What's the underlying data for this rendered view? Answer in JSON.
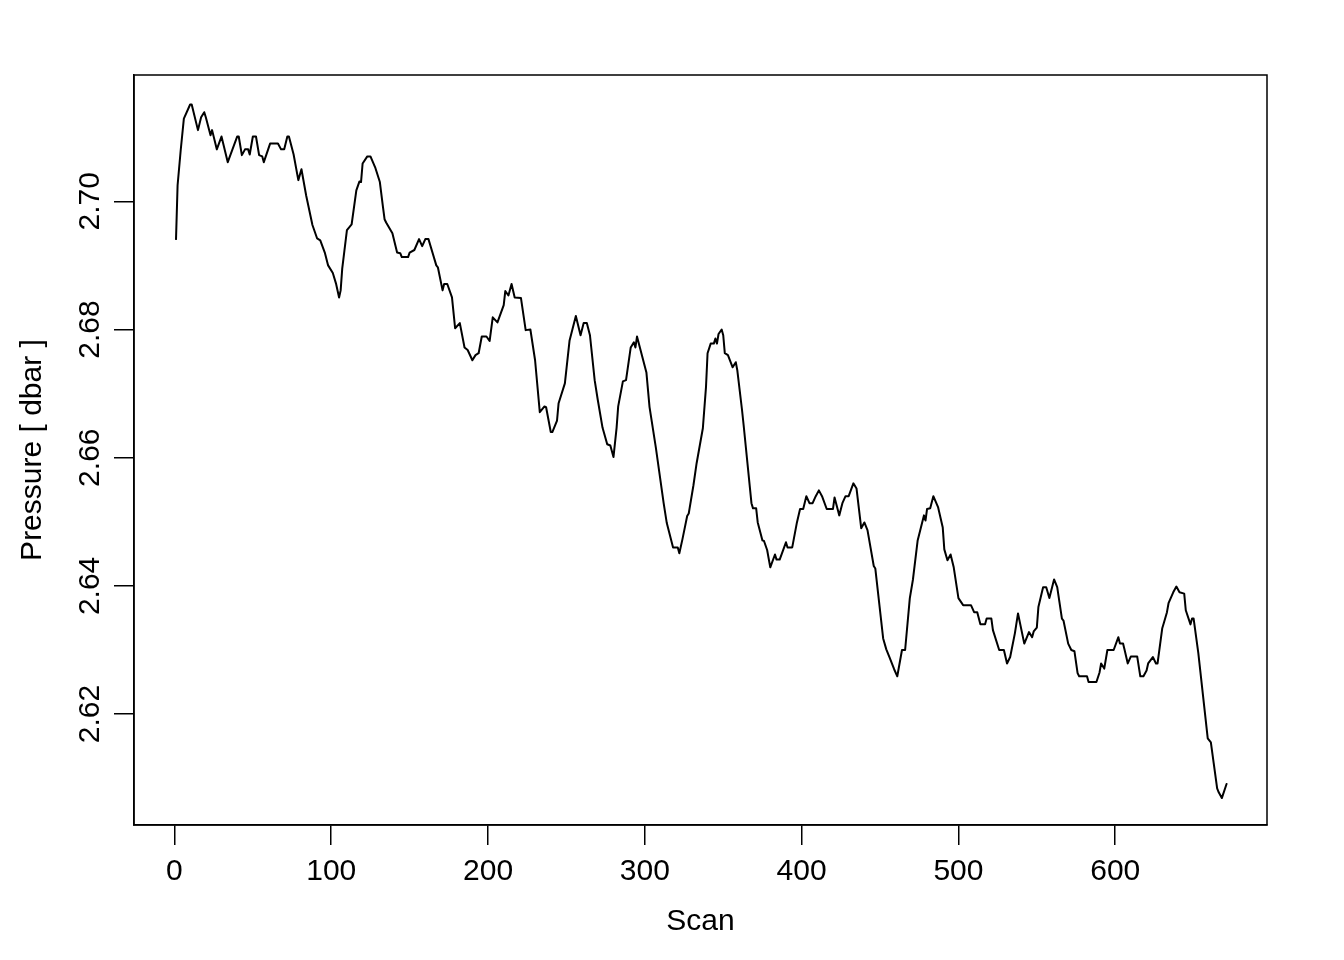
{
  "chart_data": {
    "type": "line",
    "xlabel": "Scan",
    "ylabel": "Pressure [ dbar ]",
    "x": [
      1,
      2,
      4,
      6,
      10,
      11,
      15,
      17,
      19,
      20,
      23,
      24,
      27,
      30,
      34,
      37,
      40,
      41,
      43,
      45,
      47,
      48,
      50,
      52,
      54,
      56,
      57,
      61,
      66,
      68,
      70,
      72,
      73,
      76,
      79,
      81,
      84,
      88,
      91,
      93,
      96,
      98,
      101,
      103,
      105,
      106,
      107,
      110,
      113,
      116,
      118,
      119,
      120,
      123,
      125,
      128,
      131,
      133,
      134,
      135,
      139,
      142,
      144,
      145,
      149,
      150,
      153,
      156,
      158,
      160,
      162,
      167,
      168,
      171,
      172,
      174,
      177,
      179,
      182,
      185,
      187,
      190,
      192,
      194,
      196,
      199,
      201,
      203,
      206,
      210,
      211,
      213,
      215,
      217,
      221,
      224,
      227,
      230,
      233,
      236,
      237,
      240,
      241,
      244,
      245,
      249,
      252,
      256,
      259,
      261,
      263,
      265,
      268,
      270,
      273,
      276,
      278,
      280,
      282,
      283,
      286,
      288,
      291,
      293,
      294,
      295,
      301,
      303,
      307,
      312,
      314,
      318,
      321,
      322,
      324,
      327,
      328,
      331,
      333,
      337,
      339,
      340,
      342,
      344,
      345,
      346,
      347,
      349,
      350,
      351,
      353,
      356,
      358,
      359,
      362,
      363,
      368,
      369,
      371,
      372,
      375,
      376,
      378,
      380,
      383,
      384,
      386,
      390,
      391,
      394,
      397,
      399,
      401,
      403,
      405,
      407,
      409,
      411,
      413,
      416,
      420,
      421,
      424,
      426,
      428,
      430,
      433,
      435,
      438,
      440,
      442,
      446,
      447,
      452,
      454,
      456,
      459,
      461,
      464,
      466,
      469,
      471,
      474,
      478,
      479,
      480,
      482,
      484,
      487,
      490,
      491,
      493,
      495,
      497,
      500,
      503,
      508,
      510,
      512,
      514,
      517,
      518,
      521,
      522,
      526,
      529,
      531,
      533,
      536,
      538,
      542,
      545,
      547,
      548,
      550,
      551,
      554,
      556,
      558,
      561,
      563,
      566,
      567,
      570,
      572,
      574,
      576,
      577,
      582,
      583,
      588,
      590,
      591,
      593,
      595,
      599,
      602,
      603,
      605,
      606,
      608,
      610,
      614,
      616,
      618,
      620,
      621,
      624,
      626,
      627,
      630,
      631,
      633,
      634,
      637,
      639,
      641,
      644,
      645,
      648,
      649,
      650,
      653,
      659,
      661,
      665,
      666,
      668,
      671
    ],
    "series": [
      {
        "color": "#000000",
        "values": [
          2.6941,
          2.7025,
          2.708,
          2.7129,
          2.7151,
          2.7151,
          2.7111,
          2.7131,
          2.7139,
          2.7131,
          2.7103,
          2.7111,
          2.7081,
          2.7101,
          2.7061,
          2.7081,
          2.7101,
          2.7101,
          2.7072,
          2.7081,
          2.7081,
          2.7073,
          2.7101,
          2.7101,
          2.7072,
          2.707,
          2.7061,
          2.709,
          2.709,
          2.7081,
          2.7081,
          2.7101,
          2.7101,
          2.7073,
          2.7033,
          2.705,
          2.7009,
          2.6963,
          2.6942,
          2.6939,
          2.6919,
          2.69,
          2.6888,
          2.6872,
          2.685,
          2.6861,
          2.6895,
          2.6955,
          2.6964,
          2.7017,
          2.7031,
          2.703,
          2.7059,
          2.707,
          2.707,
          2.7053,
          2.703,
          2.6991,
          2.6972,
          2.6967,
          2.695,
          2.692,
          2.6919,
          2.6913,
          2.6913,
          2.692,
          2.6924,
          2.6941,
          2.693,
          2.6941,
          2.6941,
          2.69,
          2.6897,
          2.6861,
          2.6871,
          2.6871,
          2.685,
          2.6802,
          2.681,
          2.6772,
          2.6768,
          2.6752,
          2.676,
          2.6763,
          2.6789,
          2.6789,
          2.6782,
          2.6819,
          2.6811,
          2.6838,
          2.686,
          2.6853,
          2.6871,
          2.685,
          2.6849,
          2.6799,
          2.68,
          2.6752,
          2.6671,
          2.668,
          2.6679,
          2.664,
          2.664,
          2.6658,
          2.6685,
          2.6716,
          2.6783,
          2.6821,
          2.6791,
          2.681,
          2.681,
          2.6791,
          2.6721,
          2.669,
          2.6647,
          2.6621,
          2.6619,
          2.6601,
          2.6647,
          2.668,
          2.6719,
          2.6721,
          2.6772,
          2.678,
          2.6772,
          2.6789,
          2.6733,
          2.6679,
          2.6616,
          2.6529,
          2.6498,
          2.646,
          2.646,
          2.6451,
          2.6473,
          2.6509,
          2.6513,
          2.6557,
          2.6591,
          2.6646,
          2.671,
          2.6763,
          2.6778,
          2.6778,
          2.6786,
          2.6778,
          2.6793,
          2.68,
          2.6791,
          2.6763,
          2.676,
          2.6741,
          2.6749,
          2.6736,
          2.6674,
          2.6651,
          2.6529,
          2.6521,
          2.6521,
          2.6499,
          2.6471,
          2.647,
          2.6456,
          2.6429,
          2.6449,
          2.6441,
          2.6441,
          2.6468,
          2.646,
          2.646,
          2.6499,
          2.652,
          2.652,
          2.654,
          2.6529,
          2.6529,
          2.654,
          2.6549,
          2.654,
          2.652,
          2.652,
          2.6538,
          2.651,
          2.6529,
          2.654,
          2.654,
          2.656,
          2.6552,
          2.649,
          2.6499,
          2.6487,
          2.6431,
          2.6427,
          2.6318,
          2.6301,
          2.6289,
          2.627,
          2.6259,
          2.63,
          2.63,
          2.6381,
          2.641,
          2.6471,
          2.651,
          2.6502,
          2.652,
          2.6521,
          2.654,
          2.6523,
          2.6491,
          2.6457,
          2.644,
          2.6449,
          2.6429,
          2.6381,
          2.637,
          2.637,
          2.6359,
          2.6359,
          2.634,
          2.634,
          2.6349,
          2.6349,
          2.6331,
          2.63,
          2.63,
          2.6279,
          2.6289,
          2.6326,
          2.6357,
          2.631,
          2.6328,
          2.632,
          2.6329,
          2.6335,
          2.6367,
          2.6398,
          2.6398,
          2.6381,
          2.641,
          2.6398,
          2.6349,
          2.6346,
          2.631,
          2.63,
          2.6298,
          2.6264,
          2.6259,
          2.6259,
          2.625,
          2.625,
          2.6265,
          2.6279,
          2.6271,
          2.63,
          2.63,
          2.632,
          2.631,
          2.631,
          2.63,
          2.6279,
          2.629,
          2.629,
          2.6259,
          2.6259,
          2.6268,
          2.6279,
          2.6289,
          2.6279,
          2.6279,
          2.6334,
          2.6342,
          2.6359,
          2.6373,
          2.639,
          2.6399,
          2.639,
          2.6388,
          2.6362,
          2.634,
          2.6349,
          2.6349,
          2.6295,
          2.6162,
          2.6156,
          2.6084,
          2.6078,
          2.6069,
          2.6091
        ]
      }
    ],
    "xlim": [
      -25.8,
      696.8
    ],
    "ylim": [
      2.6027,
      2.7197
    ],
    "xticks": [
      0,
      100,
      200,
      300,
      400,
      500,
      600
    ],
    "yticks": [
      2.62,
      2.64,
      2.66,
      2.68,
      {
        "value": 2.7,
        "label": "2.70"
      }
    ]
  }
}
